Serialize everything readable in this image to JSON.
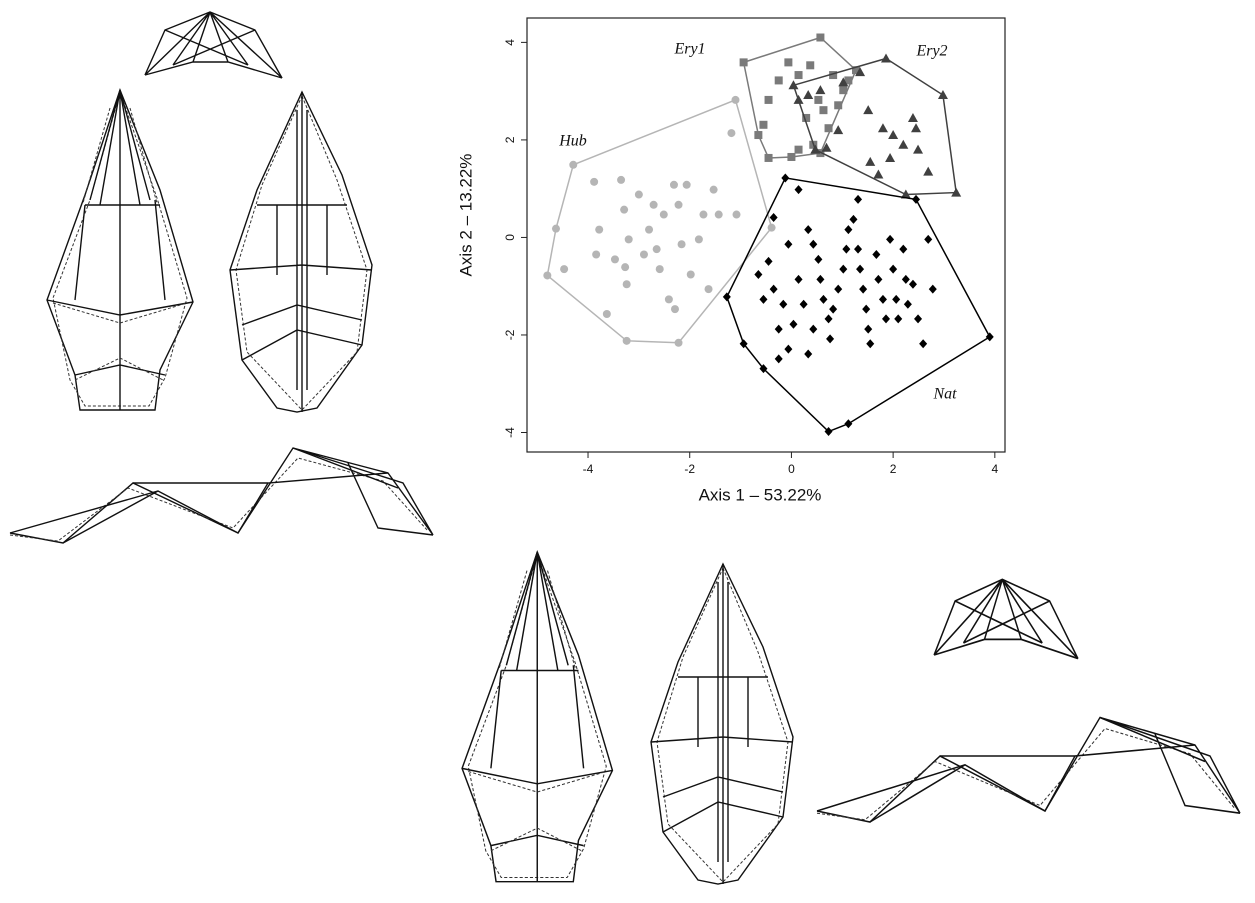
{
  "chart_data": {
    "type": "scatter",
    "xlabel": "Axis 1 – 53.22%",
    "ylabel": "Axis 2 – 13.22%",
    "xlim": [
      -5.2,
      4.2
    ],
    "ylim": [
      -4.4,
      4.5
    ],
    "xticks": [
      -4,
      -2,
      0,
      2,
      4
    ],
    "yticks": [
      -4,
      -2,
      0,
      2,
      4
    ],
    "series": [
      {
        "name": "Hub",
        "color": "#b5b5b5",
        "marker": "circle",
        "x": [
          -4.8,
          -4.63,
          -4.29,
          -1.1,
          -0.39,
          -2.22,
          -3.24,
          -4.47,
          -3.88,
          -3.78,
          -3.63,
          -3.35,
          -3.29,
          -3.2,
          -3.24,
          -3.0,
          -2.9,
          -2.8,
          -2.71,
          -2.65,
          -2.59,
          -2.51,
          -2.41,
          -2.31,
          -2.22,
          -2.16,
          -2.06,
          -1.98,
          -1.82,
          -1.73,
          -1.53,
          -1.43,
          -1.18,
          -1.08,
          -3.27,
          -3.47,
          -3.84,
          -2.29,
          -1.63
        ],
        "values": [
          -0.78,
          0.18,
          1.49,
          2.82,
          0.2,
          -2.16,
          -2.12,
          -0.65,
          1.14,
          0.16,
          -1.57,
          1.18,
          0.57,
          -0.04,
          -0.96,
          0.88,
          -0.35,
          0.16,
          0.67,
          -0.24,
          -0.65,
          0.47,
          -1.27,
          1.08,
          0.67,
          -0.14,
          1.08,
          -0.76,
          -0.04,
          0.47,
          0.98,
          0.47,
          2.14,
          0.47,
          -0.61,
          -0.45,
          -0.35,
          -1.47,
          -1.06
        ]
      },
      {
        "name": "Ery1",
        "color": "#7a7a7a",
        "marker": "square",
        "x": [
          -0.94,
          0.57,
          1.27,
          0.57,
          -0.45,
          -0.55,
          -0.45,
          -0.25,
          -0.06,
          0.14,
          0.37,
          0.53,
          0.63,
          0.73,
          0.82,
          0.92,
          1.02,
          0.29,
          0.14,
          0.43,
          0,
          1.12,
          -0.65
        ],
        "values": [
          3.59,
          4.1,
          3.43,
          1.73,
          1.63,
          2.31,
          2.82,
          3.22,
          3.59,
          3.33,
          3.53,
          2.82,
          2.61,
          2.24,
          3.33,
          2.71,
          3.02,
          2.45,
          1.8,
          1.9,
          1.65,
          3.22,
          2.1
        ]
      },
      {
        "name": "Ery2",
        "color": "#404040",
        "marker": "triangle",
        "x": [
          0.04,
          1.86,
          2.98,
          3.24,
          2.25,
          1.71,
          0.47,
          0.14,
          0.33,
          0.57,
          1.02,
          1.35,
          1.51,
          2.0,
          2.2,
          2.39,
          2.45,
          2.49,
          2.69,
          1.55,
          1.94,
          0.92,
          0.69,
          1.8
        ],
        "values": [
          3.12,
          3.67,
          2.92,
          0.92,
          0.88,
          1.29,
          1.8,
          2.82,
          2.92,
          3.02,
          3.18,
          3.39,
          2.61,
          2.1,
          1.9,
          2.45,
          2.24,
          1.8,
          1.35,
          1.55,
          1.63,
          2.2,
          1.84,
          2.24
        ]
      },
      {
        "name": "Nat",
        "color": "#000000",
        "marker": "diamond",
        "x": [
          -1.27,
          -0.12,
          2.45,
          3.9,
          0.73,
          -0.94,
          -0.35,
          -0.06,
          0.14,
          0.33,
          0.43,
          0.53,
          0.57,
          0.63,
          0.73,
          0.76,
          0.82,
          0.92,
          1.02,
          1.08,
          1.12,
          1.22,
          1.31,
          1.35,
          1.41,
          1.47,
          1.51,
          1.55,
          1.67,
          1.71,
          1.8,
          1.86,
          1.94,
          2.0,
          2.06,
          2.1,
          2.2,
          2.25,
          2.29,
          2.39,
          2.49,
          2.59,
          2.69,
          2.78,
          -0.65,
          -0.55,
          -0.45,
          -0.35,
          -0.25,
          -0.16,
          -0.06,
          0.04,
          0.14,
          0.24,
          0.33,
          0.43,
          -0.55,
          -0.25,
          1.12,
          1.31
        ],
        "values": [
          -1.22,
          1.22,
          0.78,
          -2.04,
          -3.98,
          -2.18,
          0.41,
          -0.14,
          0.98,
          0.16,
          -0.14,
          -0.45,
          -0.86,
          -1.27,
          -1.67,
          -2.08,
          -1.47,
          -1.06,
          -0.65,
          -0.24,
          0.16,
          0.37,
          -0.24,
          -0.65,
          -1.06,
          -1.47,
          -1.88,
          -2.18,
          -0.35,
          -0.86,
          -1.27,
          -1.67,
          -0.04,
          -0.65,
          -1.27,
          -1.67,
          -0.24,
          -0.86,
          -1.37,
          -0.96,
          -1.67,
          -2.18,
          -0.04,
          -1.06,
          -0.76,
          -1.27,
          -0.49,
          -1.06,
          -1.88,
          -1.37,
          -2.29,
          -1.78,
          -0.86,
          -1.37,
          -2.39,
          -1.88,
          -2.69,
          -2.49,
          -3.82,
          0.78
        ]
      }
    ]
  }
}
